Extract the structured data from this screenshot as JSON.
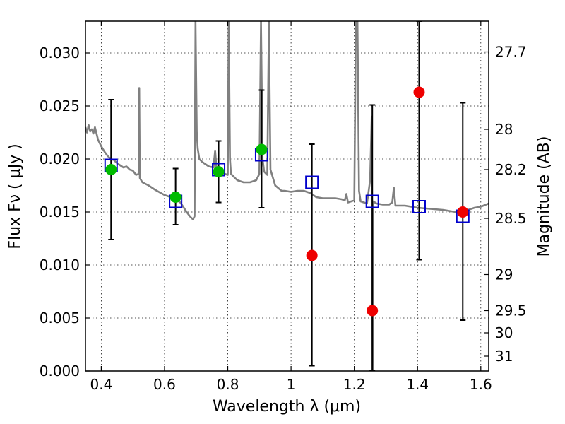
{
  "chart_data": {
    "type": "scatter",
    "title": "",
    "xlabel": "Wavelength  λ (μm)",
    "ylabel": "Flux  Fν  ( μJy )",
    "ylabel_right": "Magnitude (AB)",
    "xlim": [
      0.35,
      1.625
    ],
    "ylim": [
      0.0,
      0.033
    ],
    "x_ticks": [
      0.4,
      0.6,
      0.8,
      1.0,
      1.2,
      1.4,
      1.6
    ],
    "x_tick_labels": [
      "0.4",
      "0.6",
      "0.8",
      "1",
      "1.2",
      "1.4",
      "1.6"
    ],
    "y_ticks": [
      0.0,
      0.005,
      0.01,
      0.015,
      0.02,
      0.025,
      0.03
    ],
    "y_tick_labels": [
      "0.000",
      "0.005",
      "0.010",
      "0.015",
      "0.020",
      "0.025",
      "0.030"
    ],
    "right_axis_ticks": [
      {
        "label": "27.7",
        "flux": 0.0301
      },
      {
        "label": "28",
        "flux": 0.0228
      },
      {
        "label": "28.2",
        "flux": 0.019
      },
      {
        "label": "28.5",
        "flux": 0.0144
      },
      {
        "label": "29",
        "flux": 0.0091
      },
      {
        "label": "29.5",
        "flux": 0.0057
      },
      {
        "label": "30",
        "flux": 0.0036
      },
      {
        "label": "31",
        "flux": 0.0014
      }
    ],
    "grid": true,
    "colors": {
      "model_line": "#808080",
      "model_points": "#0000cc",
      "detections": "#00bb00",
      "nondetections": "#ee0000",
      "errorbars": "#000000"
    },
    "series": [
      {
        "kind": "line",
        "points": [
          [
            0.35,
            0.023
          ],
          [
            0.355,
            0.0225
          ],
          [
            0.36,
            0.0232
          ],
          [
            0.365,
            0.0226
          ],
          [
            0.37,
            0.0228
          ],
          [
            0.375,
            0.0224
          ],
          [
            0.38,
            0.023
          ],
          [
            0.39,
            0.0218
          ],
          [
            0.4,
            0.0212
          ],
          [
            0.41,
            0.0207
          ],
          [
            0.42,
            0.0203
          ],
          [
            0.43,
            0.02
          ],
          [
            0.44,
            0.0199
          ],
          [
            0.45,
            0.0196
          ],
          [
            0.46,
            0.0194
          ],
          [
            0.47,
            0.0192
          ],
          [
            0.48,
            0.0193
          ],
          [
            0.49,
            0.019
          ],
          [
            0.5,
            0.0189
          ],
          [
            0.51,
            0.0185
          ],
          [
            0.518,
            0.0186
          ],
          [
            0.52,
            0.0267
          ],
          [
            0.522,
            0.0182
          ],
          [
            0.53,
            0.0178
          ],
          [
            0.55,
            0.0175
          ],
          [
            0.57,
            0.0171
          ],
          [
            0.6,
            0.0166
          ],
          [
            0.63,
            0.0163
          ],
          [
            0.65,
            0.0159
          ],
          [
            0.67,
            0.015
          ],
          [
            0.68,
            0.0146
          ],
          [
            0.69,
            0.0143
          ],
          [
            0.695,
            0.0146
          ],
          [
            0.698,
            0.033
          ],
          [
            0.702,
            0.0225
          ],
          [
            0.705,
            0.021
          ],
          [
            0.71,
            0.02
          ],
          [
            0.72,
            0.0197
          ],
          [
            0.74,
            0.0193
          ],
          [
            0.755,
            0.0192
          ],
          [
            0.76,
            0.0208
          ],
          [
            0.765,
            0.0188
          ],
          [
            0.78,
            0.0189
          ],
          [
            0.79,
            0.0186
          ],
          [
            0.8,
            0.0185
          ],
          [
            0.803,
            0.033
          ],
          [
            0.807,
            0.02
          ],
          [
            0.81,
            0.0186
          ],
          [
            0.83,
            0.018
          ],
          [
            0.85,
            0.0178
          ],
          [
            0.87,
            0.0178
          ],
          [
            0.89,
            0.018
          ],
          [
            0.9,
            0.0186
          ],
          [
            0.905,
            0.033
          ],
          [
            0.91,
            0.02
          ],
          [
            0.915,
            0.0188
          ],
          [
            0.925,
            0.0185
          ],
          [
            0.93,
            0.033
          ],
          [
            0.935,
            0.019
          ],
          [
            0.95,
            0.0175
          ],
          [
            0.97,
            0.017
          ],
          [
            0.98,
            0.017
          ],
          [
            1.0,
            0.0169
          ],
          [
            1.02,
            0.017
          ],
          [
            1.04,
            0.017
          ],
          [
            1.06,
            0.0168
          ],
          [
            1.08,
            0.0164
          ],
          [
            1.1,
            0.0163
          ],
          [
            1.12,
            0.0163
          ],
          [
            1.14,
            0.0163
          ],
          [
            1.16,
            0.0162
          ],
          [
            1.17,
            0.0161
          ],
          [
            1.175,
            0.0167
          ],
          [
            1.18,
            0.0159
          ],
          [
            1.19,
            0.016
          ],
          [
            1.2,
            0.0161
          ],
          [
            1.205,
            0.033
          ],
          [
            1.21,
            0.033
          ],
          [
            1.215,
            0.017
          ],
          [
            1.22,
            0.016
          ],
          [
            1.24,
            0.0158
          ],
          [
            1.25,
            0.018
          ],
          [
            1.255,
            0.024
          ],
          [
            1.258,
            0.0
          ],
          [
            1.26,
            0.016
          ],
          [
            1.27,
            0.0158
          ],
          [
            1.29,
            0.0157
          ],
          [
            1.31,
            0.0157
          ],
          [
            1.32,
            0.0159
          ],
          [
            1.325,
            0.0173
          ],
          [
            1.33,
            0.0156
          ],
          [
            1.36,
            0.0156
          ],
          [
            1.4,
            0.0154
          ],
          [
            1.44,
            0.0153
          ],
          [
            1.48,
            0.0152
          ],
          [
            1.5,
            0.0151
          ],
          [
            1.52,
            0.015
          ],
          [
            1.55,
            0.0151
          ],
          [
            1.58,
            0.0154
          ],
          [
            1.6,
            0.0155
          ],
          [
            1.625,
            0.0158
          ]
        ]
      },
      {
        "kind": "errorbars",
        "points": [
          {
            "x": 0.431,
            "low": 0.0124,
            "high": 0.0256
          },
          {
            "x": 0.635,
            "low": 0.0138,
            "high": 0.0191
          },
          {
            "x": 0.771,
            "low": 0.0159,
            "high": 0.0217
          },
          {
            "x": 0.907,
            "low": 0.0154,
            "high": 0.0265
          },
          {
            "x": 1.066,
            "low": 0.0005,
            "high": 0.0214
          },
          {
            "x": 1.257,
            "low": 0.0,
            "high": 0.0251
          },
          {
            "x": 1.405,
            "low": 0.0105,
            "high": 0.033
          },
          {
            "x": 1.543,
            "low": 0.0048,
            "high": 0.0253
          }
        ]
      },
      {
        "kind": "model_points",
        "marker": "open-square",
        "x": [
          0.431,
          0.635,
          0.771,
          0.907,
          1.066,
          1.257,
          1.405,
          1.543
        ],
        "y": [
          0.0194,
          0.016,
          0.019,
          0.0204,
          0.0178,
          0.016,
          0.0155,
          0.0146
        ]
      },
      {
        "kind": "detections",
        "marker": "filled-circle",
        "x": [
          0.431,
          0.635,
          0.771,
          0.907
        ],
        "y": [
          0.019,
          0.0164,
          0.0188,
          0.0209
        ]
      },
      {
        "kind": "nondetections",
        "marker": "filled-circle",
        "x": [
          1.066,
          1.257,
          1.405,
          1.543
        ],
        "y": [
          0.0109,
          0.0057,
          0.0263,
          0.015
        ]
      }
    ]
  }
}
